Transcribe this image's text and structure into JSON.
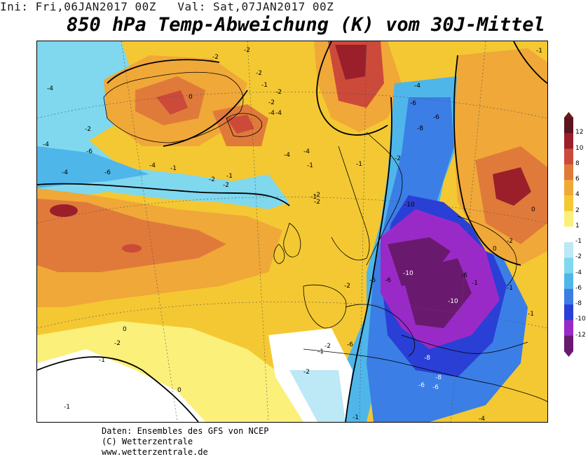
{
  "header": {
    "init": "Ini: Fri,06JAN2017 00Z",
    "valid": "Val: Sat,07JAN2017 00Z"
  },
  "title": "850 hPa Temp-Abweichung (K) vom 30J-Mittel",
  "credits": {
    "line1": "Daten: Ensembles des GFS von NCEP",
    "line2": "(C) Wetterzentrale",
    "line3": "www.wetterzentrale.de"
  },
  "legend": {
    "levels": [
      "12",
      "10",
      "8",
      "6",
      "4",
      "2",
      "1",
      "-1",
      "-2",
      "-4",
      "-6",
      "-8",
      "-10",
      "-12"
    ],
    "colors": {
      "12": "#5c1420",
      "10": "#9b1f2a",
      "8": "#cc4a3a",
      "6": "#e07a3a",
      "4": "#f0a838",
      "2": "#f4c832",
      "1": "#fbf07a",
      "0": "#ffffff",
      "-1": "#bde8f5",
      "-2": "#7fd8ee",
      "-4": "#4fb6ea",
      "-6": "#3b7ee6",
      "-8": "#2a3fd6",
      "-10": "#9a2ac8",
      "-12": "#6a1a6e"
    }
  },
  "map_labels": {
    "atlantic_low": [
      "-4",
      "-2",
      "-6",
      "-4",
      "-4",
      "-6",
      "-1",
      "-4",
      "-1",
      "-2",
      "-2",
      "-1",
      "-1",
      "-2"
    ],
    "greenland": [
      "0",
      "-2",
      "-2",
      "-2",
      "-1",
      "-2",
      "-2",
      "-4",
      "-4",
      "-4"
    ],
    "scandinavia": [
      "-4",
      "-6",
      "-6",
      "-8",
      "-2",
      "-1",
      "-4",
      "-2"
    ],
    "central_europe": [
      "-10",
      "-10",
      "-6",
      "-6",
      "-10",
      "-8",
      "-8",
      "-6",
      "-6",
      "-6",
      "-2",
      "-6",
      "-1"
    ],
    "south": [
      "-2",
      "-1",
      "0",
      "0",
      "-2",
      "-1",
      "-1",
      "-2",
      "-1"
    ],
    "east": [
      "0",
      "0",
      "-2",
      "-4",
      "-1",
      "-1",
      "-1"
    ]
  }
}
